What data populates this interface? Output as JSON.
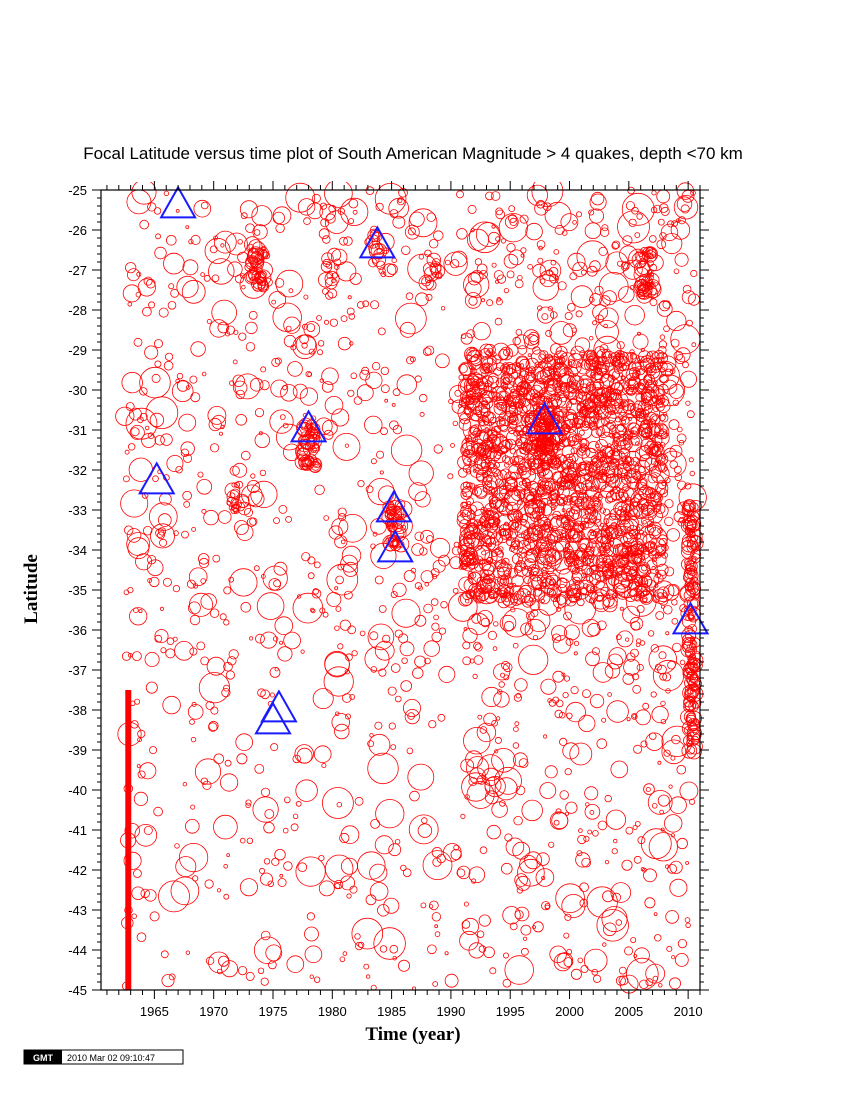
{
  "chart_data": {
    "type": "scatter",
    "title": "Focal Latitude versus time plot of South American Magnitude > 4 quakes, depth <70 km",
    "xlabel": "Time (year)",
    "ylabel": "Latitude",
    "xlim": [
      1960.5,
      2011
    ],
    "ylim": [
      -45,
      -25
    ],
    "x_ticks": [
      1965,
      1970,
      1975,
      1980,
      1985,
      1990,
      1995,
      2000,
      2005,
      2010
    ],
    "x_tick_labels": [
      "1965",
      "1970",
      "1975",
      "1980",
      "1985",
      "1990",
      "1995",
      "2000",
      "2005",
      "2010"
    ],
    "y_ticks": [
      -25,
      -26,
      -27,
      -28,
      -29,
      -30,
      -31,
      -32,
      -33,
      -34,
      -35,
      -36,
      -37,
      -38,
      -39,
      -40,
      -41,
      -42,
      -43,
      -44,
      -45
    ],
    "y_tick_labels": [
      "-25",
      "-26",
      "-27",
      "-28",
      "-29",
      "-30",
      "-31",
      "-32",
      "-33",
      "-34",
      "-35",
      "-36",
      "-37",
      "-38",
      "-39",
      "-40",
      "-41",
      "-42",
      "-43",
      "-44",
      "-45"
    ],
    "grid": false,
    "colors": {
      "quakes": "#ff0000",
      "major": "#1a1aff",
      "bar": "#ff0000"
    },
    "major_events": [
      {
        "x": 1967.0,
        "y": -25.4
      },
      {
        "x": 1965.2,
        "y": -32.3
      },
      {
        "x": 1975.0,
        "y": -38.3
      },
      {
        "x": 1975.5,
        "y": -38.0
      },
      {
        "x": 1978.0,
        "y": -31.0
      },
      {
        "x": 1983.8,
        "y": -26.4
      },
      {
        "x": 1985.2,
        "y": -33.0
      },
      {
        "x": 1985.3,
        "y": -34.0
      },
      {
        "x": 1997.9,
        "y": -30.8
      },
      {
        "x": 2010.2,
        "y": -35.8
      }
    ],
    "vertical_bar": {
      "x": 1962.8,
      "from": -45,
      "to": -37.5
    },
    "clusters": [
      {
        "x": 1973.7,
        "y": -26.9,
        "count": 45
      },
      {
        "x": 1978.1,
        "y": -31.4,
        "count": 55
      },
      {
        "x": 1984.0,
        "y": -26.5,
        "count": 15
      },
      {
        "x": 1985.3,
        "y": -33.4,
        "count": 40
      },
      {
        "x": 1997.9,
        "y": -31.0,
        "count": 60
      },
      {
        "x": 2006.5,
        "y": -27.1,
        "count": 45
      },
      {
        "x": 2010.3,
        "y": -36.0,
        "count": 160
      },
      {
        "x": 1972.0,
        "y": -32.5,
        "count": 20
      },
      {
        "x": 1980.0,
        "y": -27.1,
        "count": 12
      },
      {
        "x": 1988.5,
        "y": -27.0,
        "count": 12
      }
    ]
  },
  "stamp": {
    "logo": "GMT",
    "timestamp": "2010 Mar 02 09:10:47"
  }
}
